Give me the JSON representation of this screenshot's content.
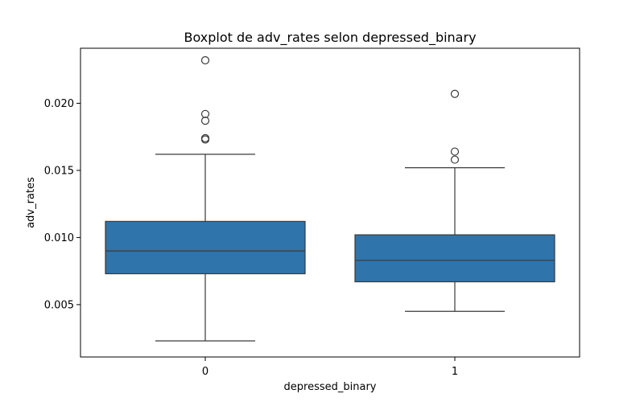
{
  "chart_data": {
    "type": "boxplot",
    "title": "Boxplot de adv_rates selon depressed_binary",
    "xlabel": "depressed_binary",
    "ylabel": "adv_rates",
    "categories": [
      "0",
      "1"
    ],
    "ylim": [
      0.0011,
      0.0241
    ],
    "yticks": [
      0.005,
      0.01,
      0.015,
      0.02
    ],
    "ytick_labels": [
      "0.005",
      "0.010",
      "0.015",
      "0.020"
    ],
    "grid": false,
    "box_color": "#2f74aa",
    "boxes": [
      {
        "category": "0",
        "whisker_low": 0.0023,
        "q1": 0.0073,
        "median": 0.009,
        "q3": 0.0112,
        "whisker_high": 0.0162,
        "outliers": [
          0.0232,
          0.0192,
          0.0187,
          0.0174,
          0.0173
        ]
      },
      {
        "category": "1",
        "whisker_low": 0.0045,
        "q1": 0.0067,
        "median": 0.0083,
        "q3": 0.0102,
        "whisker_high": 0.0152,
        "outliers": [
          0.0207,
          0.0164,
          0.0158
        ]
      }
    ]
  }
}
